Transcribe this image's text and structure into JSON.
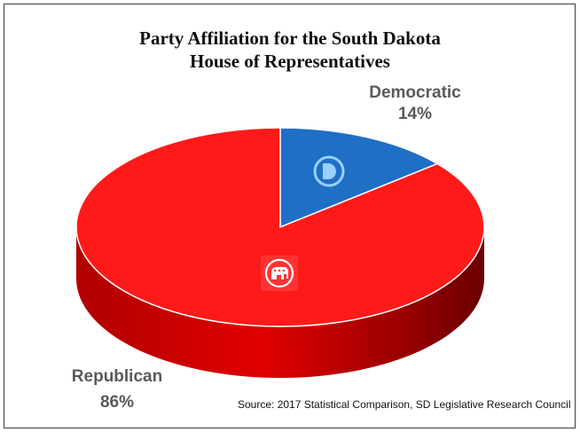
{
  "chart_data": {
    "type": "pie",
    "title": "Party Affiliation for the South Dakota House of Representatives",
    "title_lines": [
      "Party Affiliation for the South Dakota",
      "House of Representatives"
    ],
    "slices": [
      {
        "label": "Democratic",
        "value": 14,
        "display": "14%",
        "color": "#1f6fc5",
        "icon": "democratic-d-icon"
      },
      {
        "label": "Republican",
        "value": 86,
        "display": "86%",
        "color": "#ff1a1a",
        "icon": "republican-elephant-icon"
      }
    ],
    "style": "3d-pie",
    "source": "Source: 2017 Statistical Comparison, SD Legislative Research Council"
  }
}
